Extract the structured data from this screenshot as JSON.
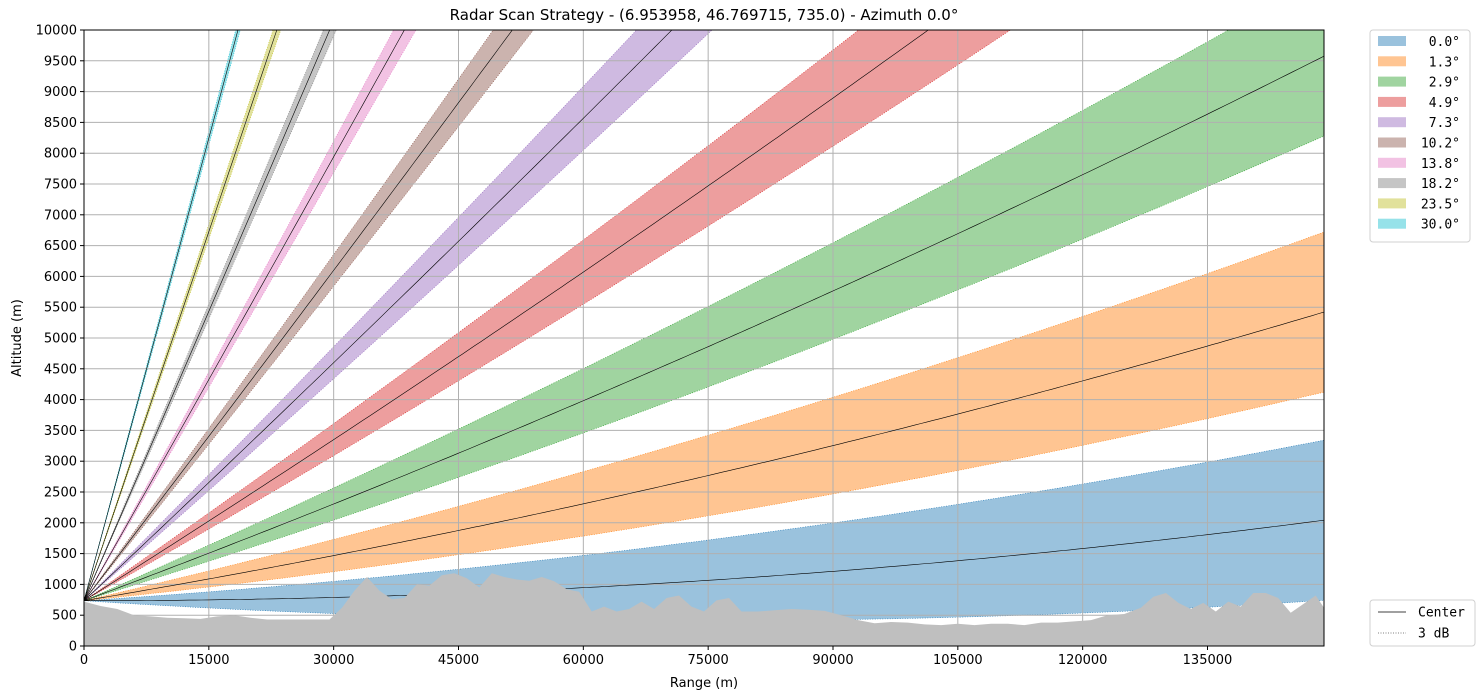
{
  "chart_data": {
    "type": "area",
    "title": "Radar Scan Strategy - (6.953958, 46.769715, 735.0) - Azimuth 0.0°",
    "xlabel": "Range (m)",
    "ylabel": "Altitude (m)",
    "xlim": [
      0,
      149000
    ],
    "ylim": [
      0,
      10000
    ],
    "xticks": [
      0,
      15000,
      30000,
      45000,
      60000,
      75000,
      90000,
      105000,
      120000,
      135000
    ],
    "yticks": [
      0,
      500,
      1000,
      1500,
      2000,
      2500,
      3000,
      3500,
      4000,
      4500,
      5000,
      5500,
      6000,
      6500,
      7000,
      7500,
      8000,
      8500,
      9000,
      9500,
      10000
    ],
    "grid": true,
    "radar_altitude": 735.0,
    "beamwidth_deg": 1.0,
    "series": [
      {
        "name": "0.0°",
        "elevation_deg": 0.0,
        "color": "#1f77b4"
      },
      {
        "name": "1.3°",
        "elevation_deg": 1.3,
        "color": "#ff7f0e"
      },
      {
        "name": "2.9°",
        "elevation_deg": 2.9,
        "color": "#2ca02c"
      },
      {
        "name": "4.9°",
        "elevation_deg": 4.9,
        "color": "#d62728"
      },
      {
        "name": "7.3°",
        "elevation_deg": 7.3,
        "color": "#9467bd"
      },
      {
        "name": "10.2°",
        "elevation_deg": 10.2,
        "color": "#8c564b"
      },
      {
        "name": "13.8°",
        "elevation_deg": 13.8,
        "color": "#e377c2"
      },
      {
        "name": "18.2°",
        "elevation_deg": 18.2,
        "color": "#7f7f7f"
      },
      {
        "name": "23.5°",
        "elevation_deg": 23.5,
        "color": "#bcbd22"
      },
      {
        "name": "30.0°",
        "elevation_deg": 30.0,
        "color": "#17becf"
      }
    ],
    "line_legend": [
      {
        "name": "Center",
        "style": "solid"
      },
      {
        "name": "3 dB",
        "style": "dotted"
      }
    ],
    "terrain": {
      "color": "#bfbfbf",
      "x": [
        0,
        2000,
        4000,
        6000,
        8000,
        10000,
        12000,
        14000,
        16000,
        18000,
        20000,
        22000,
        24000,
        26000,
        28000,
        29500,
        31000,
        32500,
        34000,
        35500,
        37000,
        38500,
        40000,
        41500,
        43000,
        44500,
        46000,
        47500,
        49000,
        50500,
        52000,
        53500,
        55000,
        56500,
        58000,
        59500,
        61000,
        62500,
        64000,
        65500,
        67000,
        68500,
        70000,
        71500,
        73000,
        74500,
        76000,
        77500,
        79000,
        81000,
        83000,
        85000,
        87000,
        89000,
        91000,
        93000,
        95000,
        97000,
        99000,
        101000,
        103000,
        105000,
        107000,
        109000,
        111000,
        113000,
        115000,
        117000,
        119000,
        121000,
        123000,
        125000,
        127000,
        128500,
        130000,
        131500,
        133000,
        134500,
        136000,
        137500,
        139000,
        140500,
        142000,
        143500,
        145000,
        146500,
        148000,
        149000
      ],
      "y": [
        720,
        650,
        600,
        500,
        480,
        460,
        450,
        440,
        480,
        500,
        460,
        430,
        430,
        430,
        430,
        430,
        620,
        900,
        1120,
        900,
        760,
        780,
        1000,
        980,
        1150,
        1180,
        1100,
        950,
        1180,
        1120,
        1080,
        1060,
        1120,
        1050,
        920,
        880,
        560,
        640,
        560,
        600,
        720,
        600,
        780,
        820,
        640,
        560,
        740,
        780,
        560,
        560,
        580,
        600,
        590,
        570,
        500,
        420,
        370,
        390,
        380,
        350,
        340,
        360,
        340,
        360,
        360,
        340,
        380,
        380,
        400,
        420,
        500,
        520,
        620,
        800,
        860,
        700,
        600,
        700,
        560,
        720,
        640,
        860,
        860,
        780,
        540,
        680,
        820,
        620
      ]
    }
  }
}
